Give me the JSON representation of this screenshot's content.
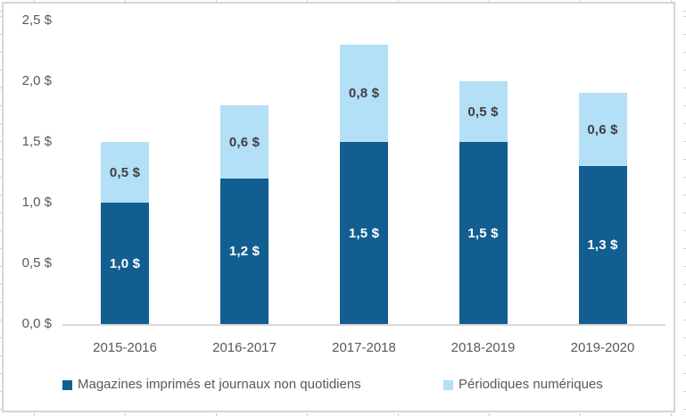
{
  "colors": {
    "series_print": "#135E90",
    "series_digital": "#B3DFF7",
    "axis_line": "#D9D9D9",
    "axis_text": "#595959",
    "label_on_dark": "#FFFFFF",
    "label_on_light": "#404040",
    "frame_border": "#D5D5D5"
  },
  "chart_data": {
    "type": "bar",
    "stacked": true,
    "title": "",
    "xlabel": "",
    "ylabel": "",
    "categories": [
      "2015-2016",
      "2016-2017",
      "2017-2018",
      "2018-2019",
      "2019-2020"
    ],
    "series": [
      {
        "name": "Magazines imprimés et journaux non quotidiens",
        "values": [
          1.0,
          1.2,
          1.5,
          1.5,
          1.3
        ],
        "data_labels": [
          "1,0 $",
          "1,2 $",
          "1,5 $",
          "1,5 $",
          "1,3 $"
        ],
        "color": "#135E90",
        "label_color": "#FFFFFF"
      },
      {
        "name": "Périodiques numériques",
        "values": [
          0.5,
          0.6,
          0.8,
          0.5,
          0.6
        ],
        "data_labels": [
          "0,5 $",
          "0,6 $",
          "0,8 $",
          "0,5 $",
          "0,6 $"
        ],
        "color": "#B3DFF7",
        "label_color": "#404040"
      }
    ],
    "totals": [
      1.5,
      1.8,
      2.3,
      2.0,
      1.9
    ],
    "y_ticks": [
      "0,0 $",
      "0,5 $",
      "1,0 $",
      "1,5 $",
      "2,0 $",
      "2,5 $"
    ],
    "y_tick_values": [
      0.0,
      0.5,
      1.0,
      1.5,
      2.0,
      2.5
    ],
    "ylim": [
      0,
      2.5
    ],
    "grid": false,
    "legend_position": "bottom"
  }
}
